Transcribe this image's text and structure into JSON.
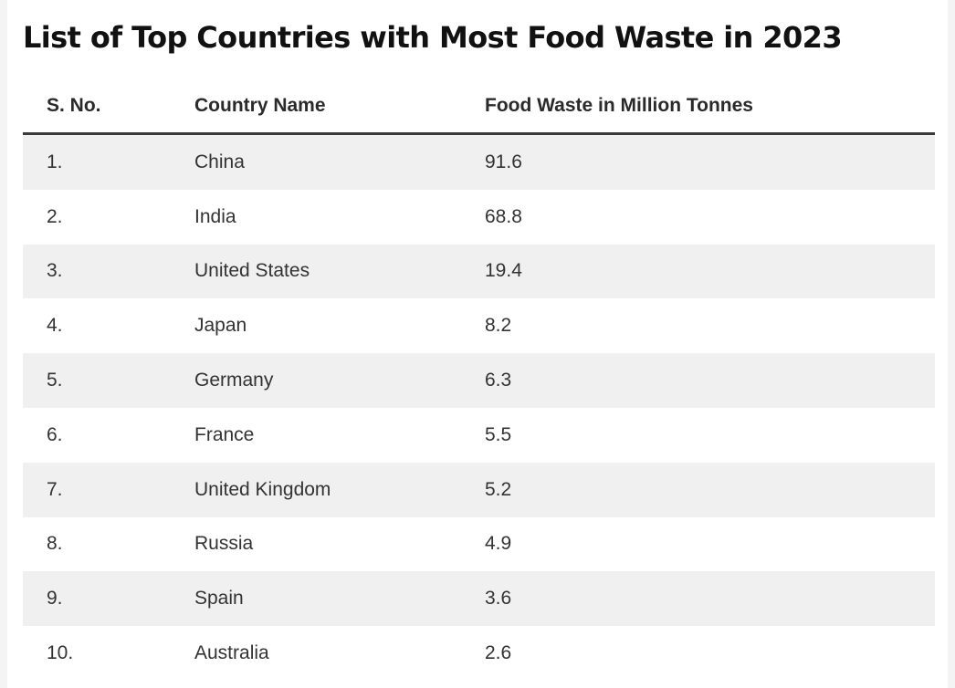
{
  "title": "List of Top Countries with Most Food Waste in 2023",
  "table": {
    "headers": [
      "S. No.",
      "Country Name",
      "Food Waste in Million Tonnes"
    ],
    "rows": [
      [
        "1.",
        "China",
        "91.6"
      ],
      [
        "2.",
        "India",
        "68.8"
      ],
      [
        "3.",
        "United States",
        "19.4"
      ],
      [
        "4.",
        "Japan",
        "8.2"
      ],
      [
        "5.",
        "Germany",
        "6.3"
      ],
      [
        "6.",
        "France",
        "5.5"
      ],
      [
        "7.",
        "United Kingdom",
        "5.2"
      ],
      [
        "8.",
        "Russia",
        "4.9"
      ],
      [
        "9.",
        "Spain",
        "3.6"
      ],
      [
        "10.",
        "Australia",
        "2.6"
      ]
    ]
  }
}
